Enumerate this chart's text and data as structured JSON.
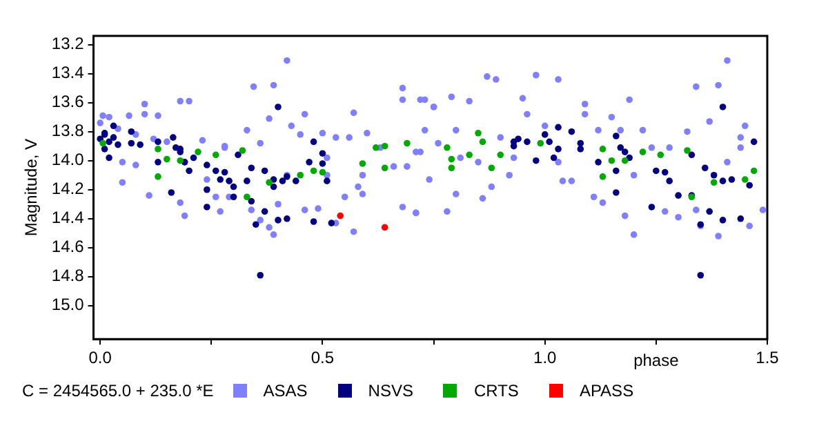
{
  "chart_data": {
    "type": "scatter",
    "xlabel": "phase",
    "ylabel": "Magnitude, V",
    "annotations": [
      "C = 2454565.0 + 235.0 *E"
    ],
    "xlim": [
      -0.015,
      1.5
    ],
    "ylim": [
      15.23,
      13.14
    ],
    "xticks": [
      {
        "value": 0,
        "label": "0.0"
      },
      {
        "value": 0.25,
        "label": null
      },
      0.5,
      {
        "value": 0.75,
        "label": null
      },
      {
        "value": 1,
        "label": "1.0"
      },
      {
        "value": 1.25,
        "label": null
      },
      1.5
    ],
    "yticks": [
      13.2,
      13.4,
      13.6,
      13.8,
      {
        "value": 14,
        "label": "14.0"
      },
      14.2,
      14.4,
      14.6,
      14.8,
      {
        "value": 15,
        "label": "15.0"
      }
    ],
    "grid": false,
    "legend": "bottom",
    "marker": "circle",
    "series": [
      {
        "name": "ASAS",
        "color": "#8080ff",
        "x": [
          0,
          0.006,
          0.02,
          0.04,
          0.065,
          0.1,
          0.1,
          0.13,
          0.18,
          0.2,
          0.345,
          0.39,
          0.42,
          0.46,
          0.57,
          0.68,
          0.68,
          0.72,
          0.75,
          0.05,
          0.08,
          0.11,
          0.18,
          0.19,
          0.27,
          0.29,
          0.34,
          0.36,
          0.38,
          0.39,
          0.4,
          0.46,
          0.49,
          0.53,
          0.55,
          0.57,
          0.59,
          0.68,
          0.71,
          0.59,
          0.58,
          0.08,
          0.12,
          0.15,
          0.23,
          0.28,
          0.28,
          0.33,
          0.36,
          0.38,
          0.43,
          0.45,
          0.5,
          0.51,
          0.53,
          0.56,
          0.6,
          0.63,
          0.66,
          0.69,
          0.71,
          0.73,
          0.74,
          0.24,
          0.26,
          0.42,
          0.51,
          0.05,
          0.19,
          0.73,
          0.75,
          0.79,
          0.83,
          0.87,
          0.89,
          0.95,
          0.98,
          1.03,
          1.09,
          1.19,
          1.34,
          1.39,
          1.41,
          1.45,
          0.71,
          0.78,
          0.8,
          0.86,
          0.88,
          0.92,
          1.04,
          1.11,
          1.18,
          1.2,
          1.27,
          1.3,
          1.35,
          1.39,
          1.46,
          1.49,
          1.34,
          1.13,
          0.72,
          0.76,
          0.81,
          0.85,
          0.9,
          0.93,
          0.96,
          1,
          1.03,
          1.06,
          1.09,
          1.12,
          1.15,
          1.17,
          1.22,
          1.24,
          1.28,
          1.32,
          1.37,
          1.41,
          1.44,
          1.44,
          1.2,
          0.8
        ],
        "values": [
          13.74,
          13.69,
          13.7,
          13.78,
          13.69,
          13.61,
          13.68,
          13.69,
          13.59,
          13.59,
          13.49,
          13.48,
          13.31,
          13.68,
          13.67,
          13.5,
          13.58,
          13.58,
          13.63,
          14.15,
          14.03,
          14.24,
          14.29,
          14.38,
          14.35,
          14.25,
          14.34,
          14.41,
          14.46,
          14.51,
          14.3,
          14.34,
          14.33,
          14.43,
          14.25,
          14.49,
          14.23,
          14.32,
          14.36,
          14.1,
          14.18,
          13.82,
          13.85,
          13.87,
          13.86,
          13.91,
          13.9,
          13.79,
          13.88,
          13.71,
          13.76,
          13.82,
          13.81,
          13.98,
          13.84,
          13.84,
          13.81,
          13.91,
          14.04,
          14.04,
          13.94,
          13.79,
          14.13,
          14.13,
          14.25,
          14.1,
          14.1,
          14.01,
          14.01,
          13.58,
          13.63,
          13.56,
          13.59,
          13.42,
          13.44,
          13.57,
          13.41,
          13.44,
          13.61,
          13.58,
          13.49,
          13.48,
          13.31,
          13.76,
          14.36,
          14.35,
          14.23,
          14.26,
          14.18,
          14.1,
          14.14,
          14.25,
          14.38,
          14.51,
          14.35,
          14.39,
          14.45,
          14.52,
          14.45,
          14.34,
          14.34,
          14.29,
          13.94,
          13.88,
          13.98,
          14.01,
          13.84,
          13.98,
          13.68,
          13.76,
          14.01,
          14.14,
          13.68,
          13.79,
          13.7,
          13.79,
          13.79,
          13.91,
          13.91,
          13.8,
          13.73,
          14.01,
          13.84,
          13.91,
          14.1,
          13.79
        ]
      },
      {
        "name": "NSVS",
        "color": "#000080",
        "x": [
          0,
          0.01,
          0.01,
          0.02,
          0.03,
          0.03,
          0.04,
          0.01,
          0.02,
          0.07,
          0.07,
          0.09,
          0.13,
          0.13,
          0.164,
          0.17,
          0.18,
          0.18,
          0.19,
          0.2,
          0.21,
          0.24,
          0.26,
          0.27,
          0.28,
          0.29,
          0.3,
          0.3,
          0.31,
          0.33,
          0.34,
          0.34,
          0.37,
          0.37,
          0.39,
          0.39,
          0.41,
          0.42,
          0.44,
          0.47,
          0.5,
          0.51,
          0.36,
          0.4,
          0.48,
          0.5,
          0.52,
          0.24,
          0.16,
          0.24,
          0.4,
          0.42,
          0.48,
          0.35,
          0.93,
          0.93,
          0.94,
          0.96,
          0.98,
          1,
          1.01,
          1.02,
          1.03,
          1.03,
          1.06,
          1.08,
          1.08,
          1.12,
          1.16,
          1.16,
          1.17,
          1.18,
          1.19,
          1.25,
          1.27,
          1.28,
          1.3,
          1.33,
          1.33,
          1.36,
          1.37,
          1.38,
          1.4,
          1.42,
          1.46,
          1.35,
          1.4,
          1.47,
          1.16,
          1.24,
          1.35,
          1.4,
          1.44
        ],
        "values": [
          13.85,
          13.81,
          13.82,
          13.87,
          13.84,
          13.76,
          13.89,
          13.92,
          13.98,
          13.8,
          13.88,
          13.89,
          13.87,
          14.01,
          13.84,
          13.91,
          13.94,
          13.92,
          14.01,
          14.07,
          13.98,
          14.03,
          14.07,
          14.13,
          14.08,
          14.14,
          14.18,
          14.25,
          13.96,
          14.14,
          14.05,
          14.28,
          14.07,
          14.35,
          14.13,
          14.18,
          14.14,
          14.11,
          14.14,
          14.01,
          14.02,
          14.14,
          14.79,
          13.63,
          13.87,
          13.95,
          14.43,
          14.2,
          14.22,
          14.32,
          14.41,
          14.4,
          14.42,
          14.44,
          13.9,
          13.87,
          13.85,
          13.87,
          14,
          13.82,
          13.87,
          13.98,
          13.77,
          13.92,
          13.8,
          13.88,
          13.92,
          14.01,
          14.07,
          13.83,
          13.91,
          13.94,
          13.98,
          14.07,
          14.08,
          14.14,
          14.24,
          13.96,
          14.24,
          14.05,
          14.35,
          14.1,
          14.14,
          14.13,
          14.17,
          14.79,
          13.63,
          13.87,
          14.22,
          14.32,
          14.44,
          14.41,
          14.4
        ]
      },
      {
        "name": "CRTS",
        "color": "#00aa00",
        "x": [
          0.006,
          0.13,
          0.13,
          0.15,
          0.18,
          0.22,
          0.26,
          0.32,
          0.33,
          0.38,
          0.45,
          0.48,
          0.5,
          0.59,
          0.62,
          0.64,
          0.64,
          0.69,
          0.78,
          0.79,
          0.79,
          0.83,
          0.85,
          0.86,
          0.88,
          0.9,
          0.99,
          1.13,
          1.13,
          1.15,
          1.18,
          1.22,
          1.26,
          1.32,
          1.33,
          1.38,
          1.45,
          1.47
        ],
        "values": [
          13.88,
          13.92,
          14.11,
          13.99,
          14,
          13.94,
          13.96,
          13.93,
          14.25,
          14.15,
          14.1,
          14.07,
          14.08,
          14.02,
          13.91,
          14.05,
          13.9,
          13.88,
          13.91,
          13.99,
          14.05,
          13.96,
          13.81,
          13.87,
          14.05,
          13.96,
          13.88,
          13.92,
          14.11,
          14,
          14,
          13.94,
          13.96,
          13.93,
          14.25,
          14.15,
          14.13,
          14.07
        ]
      },
      {
        "name": "APASS",
        "color": "#ff0000",
        "x": [
          0.54,
          0.64
        ],
        "values": [
          14.38,
          14.46
        ]
      }
    ]
  }
}
